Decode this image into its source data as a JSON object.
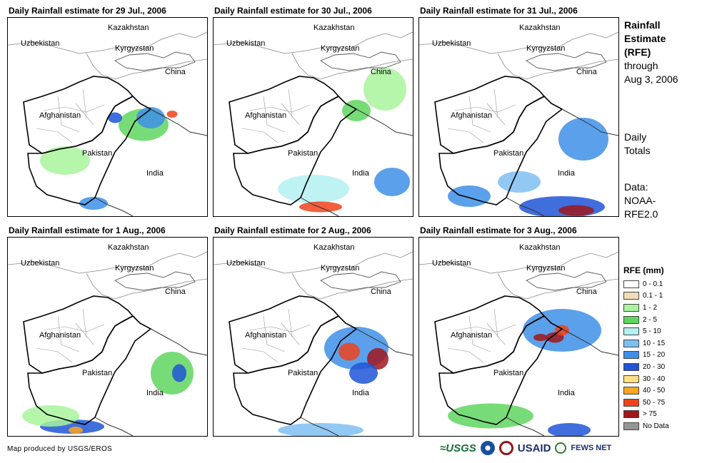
{
  "panels": [
    {
      "title": "Daily Rainfall estimate for 29 Jul., 2006"
    },
    {
      "title": "Daily Rainfall estimate for 30 Jul., 2006"
    },
    {
      "title": "Daily Rainfall estimate for 31 Jul., 2006"
    },
    {
      "title": "Daily Rainfall estimate for 1 Aug., 2006"
    },
    {
      "title": "Daily Rainfall estimate for 2 Aug., 2006"
    },
    {
      "title": "Daily Rainfall estimate for 3 Aug., 2006"
    }
  ],
  "map_labels": {
    "kazakhstan": "Kazakhstan",
    "uzbekistan": "Uzbekistan",
    "kyrgyzstan": "Kyrgyzstan",
    "china": "China",
    "afghanistan": "Afghanistan",
    "pakistan": "Pakistan",
    "india": "India"
  },
  "side": {
    "title_line1": "Rainfall",
    "title_line2": "Estimate",
    "title_line3": "(RFE)",
    "through_line1": "through",
    "through_line2": "Aug 3, 2006",
    "daily_line1": "Daily",
    "daily_line2": "Totals",
    "data_line1": "Data:",
    "data_line2": "NOAA-",
    "data_line3": "RFE2.0"
  },
  "legend": {
    "title": "RFE (mm)",
    "items": [
      {
        "label": "0 - 0.1",
        "color": "#ffffff"
      },
      {
        "label": "0.1 - 1",
        "color": "#f2dcb8"
      },
      {
        "label": "1 - 2",
        "color": "#a8f59c"
      },
      {
        "label": "2 - 5",
        "color": "#5fd65f"
      },
      {
        "label": "5 - 10",
        "color": "#b4f0f0"
      },
      {
        "label": "10 - 15",
        "color": "#7fc0f2"
      },
      {
        "label": "15 - 20",
        "color": "#3e8fe8"
      },
      {
        "label": "20 - 30",
        "color": "#1f55d6"
      },
      {
        "label": "30 - 40",
        "color": "#ffe083"
      },
      {
        "label": "40 - 50",
        "color": "#ffa51f"
      },
      {
        "label": "50 - 75",
        "color": "#f0421c"
      },
      {
        "label": "> 75",
        "color": "#a0161c"
      },
      {
        "label": "No Data",
        "color": "#969696"
      }
    ]
  },
  "footer": {
    "credit": "Map produced by USGS/EROS",
    "logo_usgs": "≈USGS",
    "logo_usaid": "USAID",
    "logo_fews": "FEWS NET"
  }
}
